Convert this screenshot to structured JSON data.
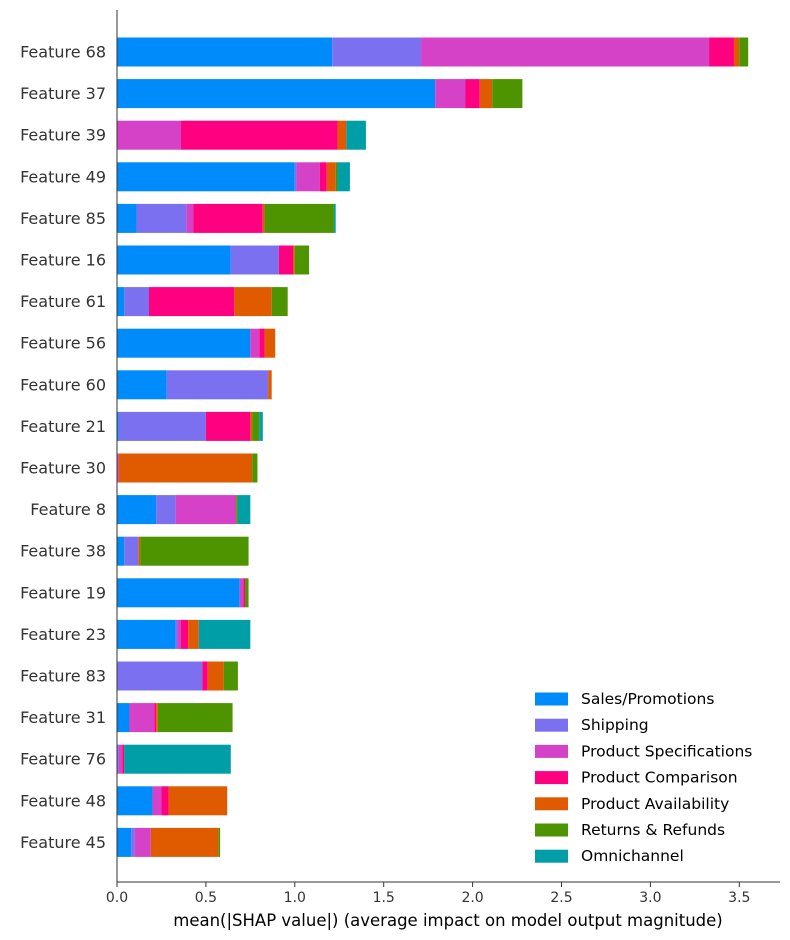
{
  "chart_data": {
    "type": "bar",
    "orientation": "horizontal",
    "stacked": true,
    "xlabel": "mean(|SHAP value|) (average impact on model output magnitude)",
    "xlim": [
      0,
      3.75
    ],
    "xticks": [
      "0.0",
      "0.5",
      "1.0",
      "1.5",
      "2.0",
      "2.5",
      "3.0",
      "3.5"
    ],
    "legend_position": "bottom-right",
    "categories": [
      "Feature 68",
      "Feature 37",
      "Feature 39",
      "Feature 49",
      "Feature 85",
      "Feature 16",
      "Feature 61",
      "Feature 56",
      "Feature 60",
      "Feature 21",
      "Feature 30",
      "Feature 8",
      "Feature 38",
      "Feature 19",
      "Feature 23",
      "Feature 83",
      "Feature 31",
      "Feature 76",
      "Feature 48",
      "Feature 45"
    ],
    "series": [
      {
        "name": "Sales/Promotions",
        "color": "#008bfb",
        "values": [
          1.21,
          1.79,
          0.0,
          1.0,
          0.11,
          0.64,
          0.04,
          0.75,
          0.28,
          0.01,
          0.0,
          0.22,
          0.04,
          0.69,
          0.33,
          0.0,
          0.07,
          0.0,
          0.2,
          0.08
        ]
      },
      {
        "name": "Shipping",
        "color": "#7b71f0",
        "values": [
          0.5,
          0.0,
          0.0,
          0.01,
          0.28,
          0.27,
          0.14,
          0.0,
          0.57,
          0.49,
          0.0,
          0.11,
          0.08,
          0.0,
          0.01,
          0.48,
          0.0,
          0.01,
          0.0,
          0.02
        ]
      },
      {
        "name": "Product Specifications",
        "color": "#d541c7",
        "values": [
          1.62,
          0.17,
          0.36,
          0.13,
          0.04,
          0.0,
          0.0,
          0.05,
          0.0,
          0.0,
          0.01,
          0.34,
          0.0,
          0.02,
          0.02,
          0.0,
          0.14,
          0.02,
          0.05,
          0.09
        ]
      },
      {
        "name": "Product Comparison",
        "color": "#ff0080",
        "values": [
          0.14,
          0.08,
          0.88,
          0.04,
          0.39,
          0.08,
          0.48,
          0.03,
          0.0,
          0.25,
          0.0,
          0.0,
          0.0,
          0.01,
          0.04,
          0.03,
          0.01,
          0.01,
          0.04,
          0.0
        ]
      },
      {
        "name": "Product Availability",
        "color": "#e05b00",
        "values": [
          0.03,
          0.07,
          0.05,
          0.05,
          0.01,
          0.01,
          0.21,
          0.06,
          0.02,
          0.01,
          0.75,
          0.0,
          0.01,
          0.0,
          0.06,
          0.09,
          0.01,
          0.0,
          0.33,
          0.38
        ]
      },
      {
        "name": "Returns & Refunds",
        "color": "#4d9400",
        "values": [
          0.05,
          0.17,
          0.0,
          0.01,
          0.39,
          0.08,
          0.09,
          0.0,
          0.0,
          0.04,
          0.03,
          0.01,
          0.61,
          0.02,
          0.0,
          0.08,
          0.42,
          0.0,
          0.0,
          0.01
        ]
      },
      {
        "name": "Omnichannel",
        "color": "#009ea6",
        "values": [
          0.0,
          0.0,
          0.11,
          0.07,
          0.01,
          0.0,
          0.0,
          0.0,
          0.0,
          0.02,
          0.0,
          0.07,
          0.0,
          0.0,
          0.29,
          0.0,
          0.0,
          0.6,
          0.0,
          0.0
        ]
      }
    ]
  }
}
